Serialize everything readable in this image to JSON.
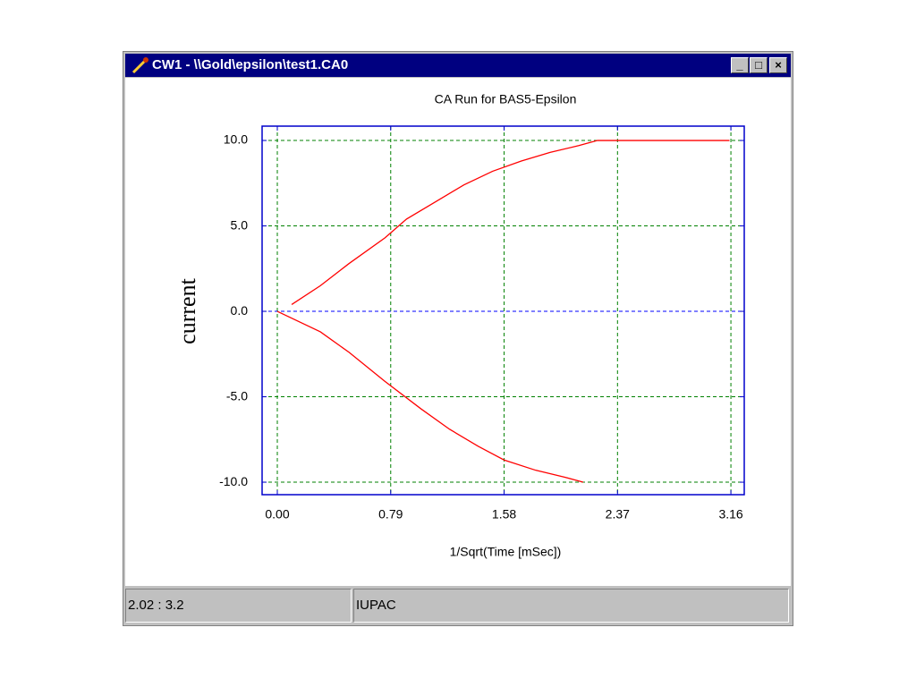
{
  "window": {
    "title": "CW1 - \\\\Gold\\epsilon\\test1.CA0"
  },
  "status_bar": [
    "2.02 : 3.2",
    "IUPAC"
  ],
  "chart_data": {
    "type": "line",
    "title": "CA Run for BAS5-Epsilon",
    "x_label": "1/Sqrt(Time [mSec])",
    "y_label": "current",
    "series": [
      {
        "color": "#ff0000",
        "x": [
          0.1,
          0.3,
          0.5,
          0.75,
          0.9,
          1.1,
          1.3,
          1.5,
          1.7,
          1.9,
          2.1,
          2.23,
          2.5,
          3.15
        ],
        "values": [
          0.4,
          1.5,
          2.8,
          4.3,
          5.4,
          6.4,
          7.4,
          8.2,
          8.8,
          9.3,
          9.7,
          10.0,
          10.0,
          10.0
        ]
      },
      {
        "color": "#ff0000",
        "x": [
          0.0,
          0.3,
          0.5,
          0.75,
          1.0,
          1.2,
          1.4,
          1.58,
          1.8,
          2.0,
          2.13
        ],
        "values": [
          0.0,
          -1.2,
          -2.4,
          -4.1,
          -5.7,
          -6.9,
          -7.9,
          -8.7,
          -9.3,
          -9.7,
          -10.0
        ]
      }
    ],
    "xlim": [
      -0.106,
      3.253
    ],
    "ylim": [
      -10.73,
      10.84
    ],
    "xticks": [
      {
        "value": 0,
        "label": "0.00"
      },
      0.79,
      1.58,
      2.37,
      3.16
    ],
    "yticks": [
      {
        "value": 10,
        "label": "10.0"
      },
      {
        "value": 5,
        "label": "5.0"
      },
      {
        "value": 0,
        "label": "0.0"
      },
      {
        "value": -5,
        "label": "-5.0"
      },
      {
        "value": -10,
        "label": "-10.0"
      }
    ],
    "grid": true,
    "grid_color": "#008000",
    "zero_line_color": "#0000ff",
    "axis_color": "#0000cc"
  }
}
